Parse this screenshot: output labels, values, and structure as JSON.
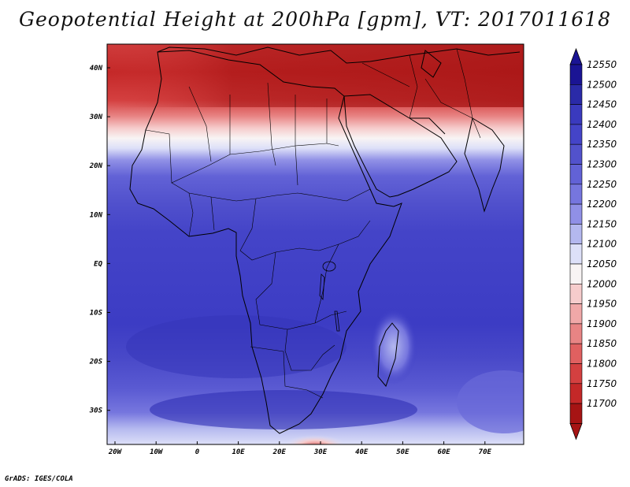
{
  "title": "Geopotential Height at 200hPa [gpm], VT: 2017011618",
  "credit": "GrADS: IGES/COLA",
  "map": {
    "lon_range": [
      -22,
      80
    ],
    "lat_range": [
      -37,
      45
    ],
    "x_ticks": [
      "20W",
      "10W",
      "0",
      "10E",
      "20E",
      "30E",
      "40E",
      "50E",
      "60E",
      "70E"
    ],
    "y_ticks": [
      "40N",
      "30N",
      "20N",
      "10N",
      "EQ",
      "10S",
      "20S",
      "30S"
    ]
  },
  "colorbar": {
    "levels": [
      12550,
      12500,
      12450,
      12400,
      12350,
      12300,
      12250,
      12200,
      12150,
      12100,
      12050,
      12000,
      11950,
      11900,
      11850,
      11800,
      11750,
      11700
    ],
    "colors": [
      "#1a1494",
      "#2a2aa8",
      "#3a3abe",
      "#4444c8",
      "#5252cc",
      "#6262d6",
      "#7676de",
      "#9090e6",
      "#b4b8ef",
      "#dde0f8",
      "#f8f4f4",
      "#f6cccc",
      "#f0a8a8",
      "#e88484",
      "#e06060",
      "#d44040",
      "#c42828",
      "#a61414"
    ]
  }
}
